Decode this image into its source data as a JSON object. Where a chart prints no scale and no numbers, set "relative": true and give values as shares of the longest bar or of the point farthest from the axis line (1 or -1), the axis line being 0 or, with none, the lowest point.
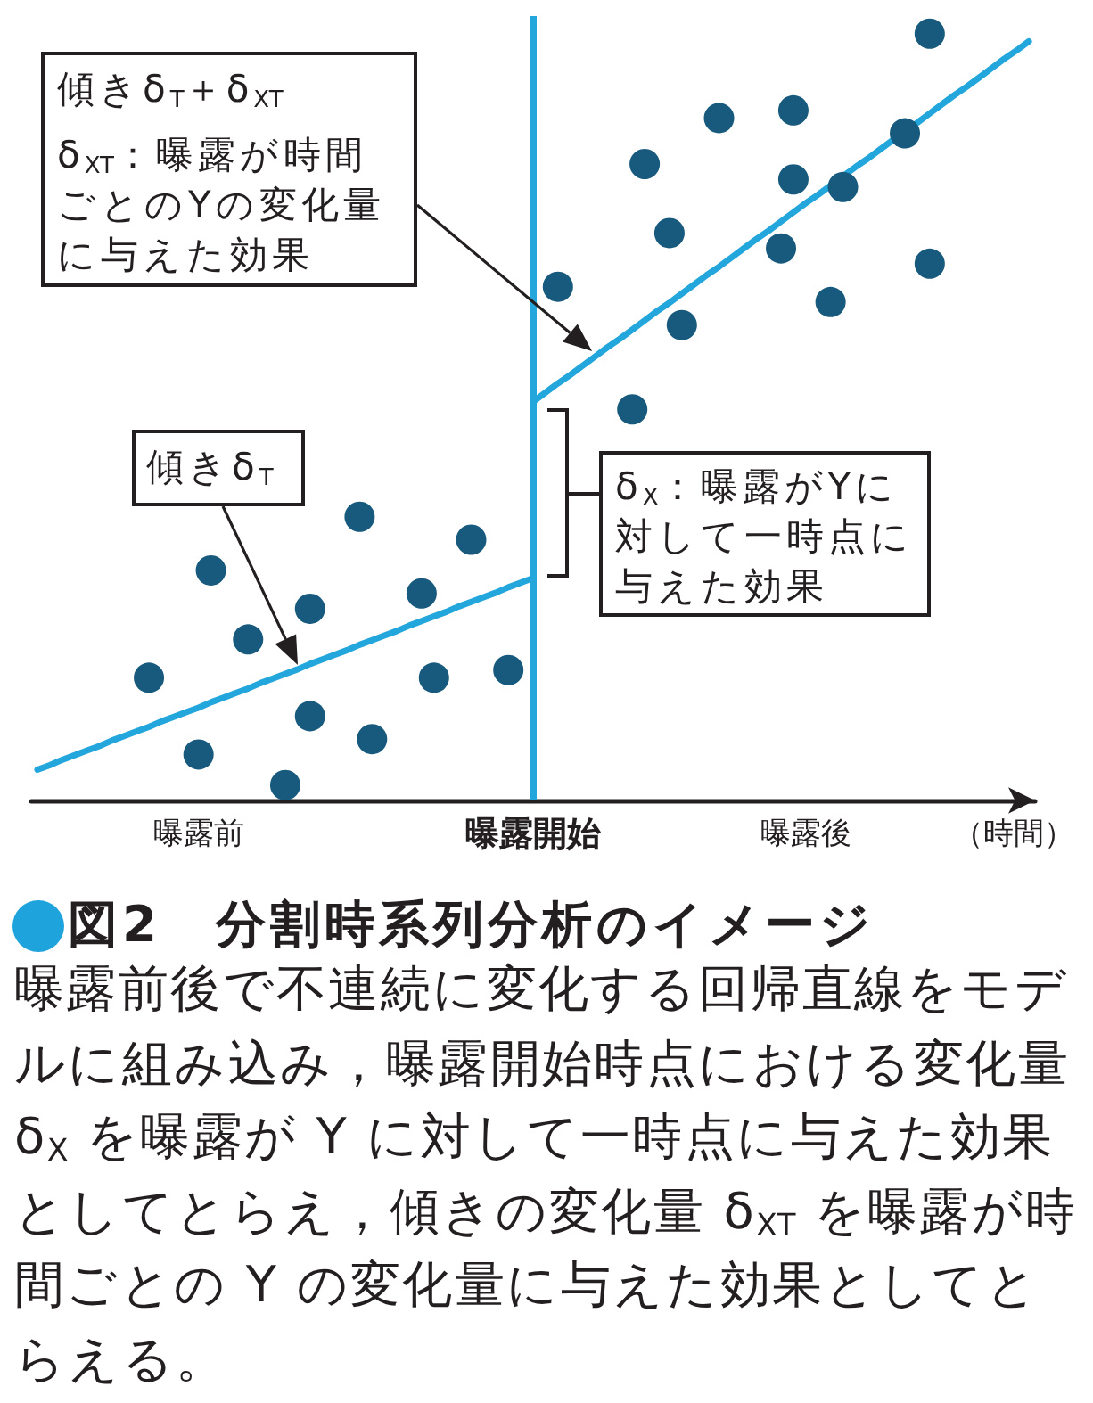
{
  "chart_data": {
    "type": "scatter",
    "relative": true,
    "marker": "circle",
    "title": "図2　分割時系列分析のイメージ",
    "xlabel": "（時間）",
    "categories": [
      null,
      null,
      null,
      null,
      null,
      null,
      null,
      null,
      null,
      null,
      null,
      null,
      null,
      "曝露前",
      null,
      null,
      null,
      null,
      null,
      null,
      null,
      null,
      null,
      null,
      null,
      null,
      null,
      null,
      null,
      null,
      null,
      null,
      null,
      null,
      null,
      null,
      null,
      null,
      null,
      null,
      "曝露開始",
      null,
      null,
      null,
      null,
      null,
      null,
      null,
      null,
      null,
      null,
      null,
      null,
      null,
      null,
      null,
      null,
      null,
      null,
      null,
      null,
      null,
      "曝露後",
      null,
      null,
      null,
      null,
      null,
      null,
      null,
      null,
      null,
      null,
      null,
      null,
      null,
      null,
      null,
      null,
      null,
      null
    ],
    "series": [
      {
        "color": "#185a7d",
        "values": [
          null,
          null,
          null,
          null,
          null,
          null,
          null,
          null,
          null,
          0.16,
          null,
          null,
          null,
          0.06,
          0.3,
          null,
          null,
          0.21,
          null,
          null,
          0.02,
          null,
          0.25,
          null,
          null,
          null,
          0.37,
          0.08,
          null,
          null,
          null,
          0.27,
          0.16,
          null,
          null,
          0.34,
          null,
          null,
          0.17,
          null,
          null,
          null,
          0.67,
          null,
          null,
          null,
          null,
          null,
          0.51,
          0.83,
          null,
          0.74,
          0.62,
          null,
          null,
          0.89,
          null,
          null,
          null,
          null,
          0.72,
          0.9,
          null,
          null,
          0.65,
          0.8,
          null,
          null,
          null,
          null,
          0.87,
          null,
          1,
          null,
          null,
          null,
          null,
          null,
          null,
          null,
          null
        ]
      },
      {
        "color": "#185a7d",
        "values": [
          null,
          null,
          null,
          null,
          null,
          null,
          null,
          null,
          null,
          null,
          null,
          null,
          null,
          null,
          null,
          null,
          null,
          null,
          null,
          null,
          null,
          null,
          0.11,
          null,
          null,
          null,
          null,
          null,
          null,
          null,
          null,
          null,
          null,
          null,
          null,
          null,
          null,
          null,
          null,
          null,
          null,
          null,
          null,
          null,
          null,
          null,
          null,
          null,
          null,
          null,
          null,
          null,
          null,
          null,
          null,
          null,
          null,
          null,
          null,
          null,
          null,
          0.81,
          null,
          null,
          null,
          null,
          null,
          null,
          null,
          null,
          null,
          null,
          0.7,
          null,
          null,
          null,
          null,
          null,
          null,
          null,
          null
        ]
      },
      {
        "type": "line",
        "marker": "none",
        "color": "#23a6db",
        "values": [
          0.04,
          0.046,
          0.053,
          0.059,
          0.065,
          0.071,
          0.078,
          0.084,
          0.09,
          0.096,
          0.103,
          0.109,
          0.115,
          0.121,
          0.128,
          0.134,
          0.14,
          0.146,
          0.153,
          0.159,
          0.165,
          0.171,
          0.178,
          0.184,
          0.19,
          0.196,
          0.203,
          0.209,
          0.215,
          0.221,
          0.228,
          0.234,
          0.24,
          0.246,
          0.253,
          0.259,
          0.265,
          0.271,
          0.278,
          0.284,
          0.29,
          null,
          null,
          null,
          null,
          null,
          null,
          null,
          null,
          null,
          null,
          null,
          null,
          null,
          null,
          null,
          null,
          null,
          null,
          null,
          null,
          null,
          null,
          null,
          null,
          null,
          null,
          null,
          null,
          null,
          null,
          null,
          null,
          null,
          null,
          null,
          null,
          null,
          null,
          null,
          null
        ]
      },
      {
        "type": "line",
        "marker": "none",
        "color": "#23a6db",
        "values": [
          null,
          null,
          null,
          null,
          null,
          null,
          null,
          null,
          null,
          null,
          null,
          null,
          null,
          null,
          null,
          null,
          null,
          null,
          null,
          null,
          null,
          null,
          null,
          null,
          null,
          null,
          null,
          null,
          null,
          null,
          null,
          null,
          null,
          null,
          null,
          null,
          null,
          null,
          null,
          null,
          0.52,
          0.532,
          0.544,
          0.555,
          0.567,
          0.579,
          0.591,
          0.602,
          0.614,
          0.626,
          0.638,
          0.649,
          0.661,
          0.673,
          0.685,
          0.696,
          0.708,
          0.72,
          0.732,
          0.743,
          0.755,
          0.767,
          0.779,
          0.79,
          0.802,
          0.814,
          0.826,
          0.837,
          0.849,
          0.861,
          0.873,
          0.884,
          0.896,
          0.908,
          0.92,
          0.931,
          0.943,
          0.955,
          0.967,
          0.978,
          0.99
        ]
      }
    ],
    "ref_lines": [
      {
        "axis": "x",
        "value": "曝露開始",
        "color": "#23a6db"
      }
    ],
    "annotations": [
      "傾きδ$_{T}$＋δ$_{XT}$",
      "δ$_{XT}$：曝露が時間ごとのYの変化量に与えた効果",
      "傾きδ$_{T}$",
      "δ$_{X}$：曝露がYに対して一時点に与えた効果",
      "曝露前後で不連続に変化する回帰直線をモデルに組み込み，曝露開始時点における変化量δ$_{X}$ を曝露が Y に対して一時点に与えた効果としてとらえ，傾きの変化量 δ$_{XT}$ を曝露が時間ごとの Y の変化量に与えた効果としてとらえる。"
    ]
  }
}
